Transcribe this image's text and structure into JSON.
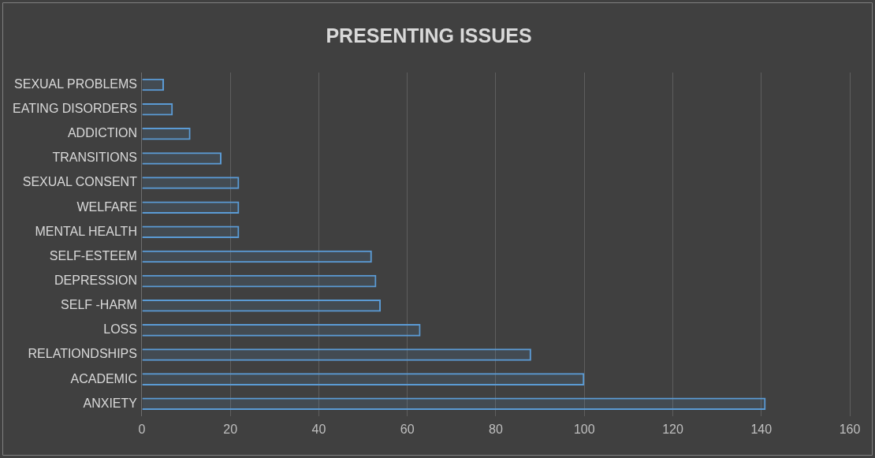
{
  "chart_data": {
    "type": "bar",
    "orientation": "horizontal",
    "title": "PRESENTING ISSUES",
    "categories": [
      "SEXUAL PROBLEMS",
      "EATING DISORDERS",
      "ADDICTION",
      "TRANSITIONS",
      "SEXUAL CONSENT",
      "WELFARE",
      "MENTAL HEALTH",
      "SELF-ESTEEM",
      "DEPRESSION",
      "SELF -HARM",
      "LOSS",
      "RELATIONDSHIPS",
      "ACADEMIC",
      "ANXIETY"
    ],
    "values": [
      5,
      7,
      11,
      18,
      22,
      22,
      22,
      52,
      53,
      54,
      63,
      88,
      100,
      141
    ],
    "color": "#5b9bd5",
    "xlim": [
      0,
      160
    ],
    "xticks": [
      0,
      20,
      40,
      60,
      80,
      100,
      120,
      140,
      160
    ],
    "grid": "x",
    "legend": false
  }
}
